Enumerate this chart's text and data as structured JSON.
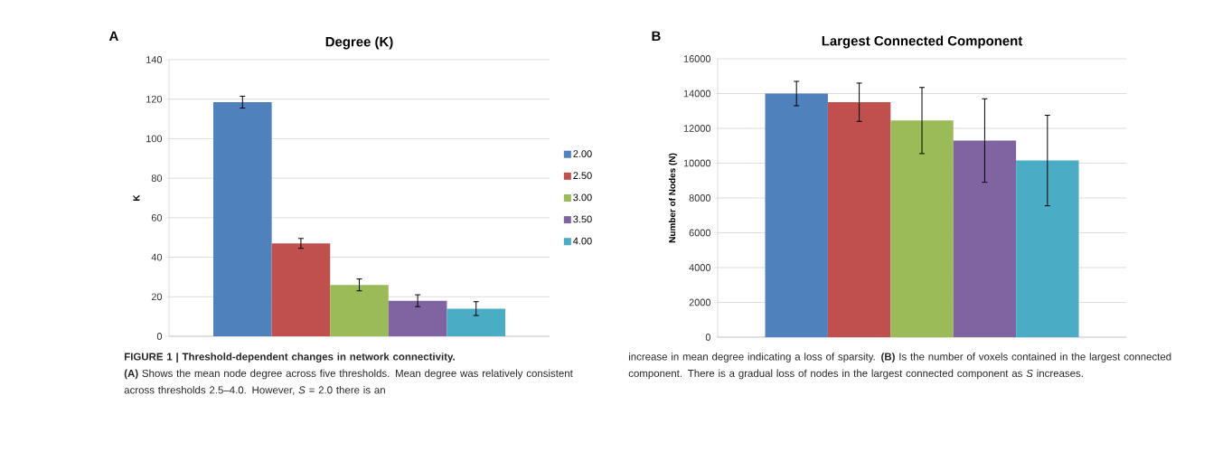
{
  "chart_data": [
    {
      "type": "bar",
      "title": "Degree (K)",
      "ylabel": "K",
      "categories": [
        null
      ],
      "ylim": [
        0,
        140
      ],
      "yticks": [
        0,
        20,
        40,
        60,
        80,
        100,
        120,
        140
      ],
      "grid": "y",
      "legend": "right",
      "series": [
        {
          "name": "2.00",
          "color": "#4f81bd",
          "values": [
            118.5
          ],
          "errors": [
            3
          ]
        },
        {
          "name": "2.50",
          "color": "#c0504d",
          "values": [
            47
          ],
          "errors": [
            2.5
          ]
        },
        {
          "name": "3.00",
          "color": "#9bbb59",
          "values": [
            26
          ],
          "errors": [
            3
          ]
        },
        {
          "name": "3.50",
          "color": "#8064a2",
          "values": [
            18
          ],
          "errors": [
            3
          ]
        },
        {
          "name": "4.00",
          "color": "#4bacc6",
          "values": [
            14
          ],
          "errors": [
            3.5
          ]
        }
      ],
      "annotations": [
        "A",
        "FIGURE 1 | Threshold-dependent changes in network connectivity.",
        "**(A)** Shows the mean node degree across five thresholds. Mean degree was relatively consistent across thresholds 2.5–4.0. However, *S* = 2.0 there is an"
      ]
    },
    {
      "type": "bar",
      "title": "Largest Connected Component",
      "ylabel": "Number of Nodes (N)",
      "categories": [
        null
      ],
      "ylim": [
        0,
        16000
      ],
      "yticks": [
        0,
        2000,
        4000,
        6000,
        8000,
        10000,
        12000,
        14000,
        16000
      ],
      "grid": "y",
      "series": [
        {
          "color": "#4f81bd",
          "values": [
            14000
          ],
          "errors": [
            700
          ]
        },
        {
          "color": "#c0504d",
          "values": [
            13500
          ],
          "errors": [
            1100
          ]
        },
        {
          "color": "#9bbb59",
          "values": [
            12450
          ],
          "errors": [
            1900
          ]
        },
        {
          "color": "#8064a2",
          "values": [
            11300
          ],
          "errors": [
            2400
          ]
        },
        {
          "color": "#4bacc6",
          "values": [
            10150
          ],
          "errors": [
            2600
          ]
        }
      ],
      "annotations": [
        "B",
        "increase in mean degree indicating a loss of sparsity. **(B)** Is the number of voxels contained in the largest connected component. There is a gradual loss of nodes in the largest connected component as *S* increases."
      ]
    }
  ]
}
